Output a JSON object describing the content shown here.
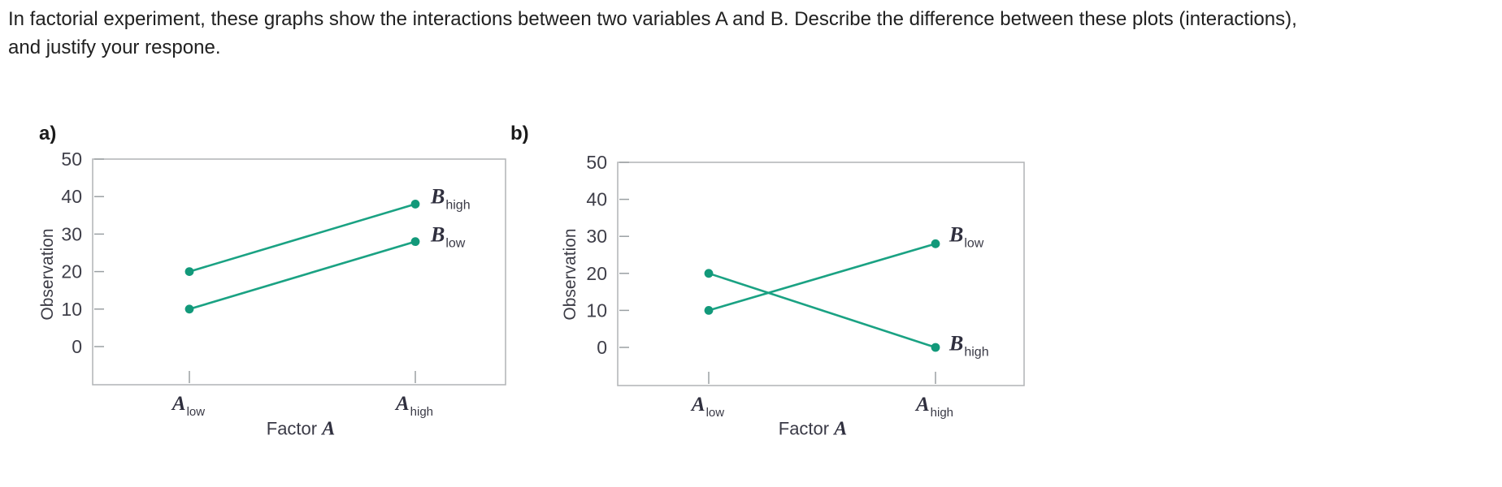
{
  "title": {
    "line1": "In factorial experiment, these graphs show the interactions between two variables A and B. Describe the difference between these plots (interactions),",
    "line2": "and justify your respone."
  },
  "colors": {
    "line": "#1aa283",
    "point": "#12997a",
    "axis_box": "#b1b3b5",
    "tick": "#9aa0a3",
    "tick_label": "#3f3f49"
  },
  "chart_data": [
    {
      "id": "a",
      "type": "line",
      "panel_label": "a)",
      "ylabel": "Observation",
      "xlabel": "Factor A",
      "xlabel_parts": {
        "word": "Factor",
        "var": "A"
      },
      "ylim": [
        0,
        50
      ],
      "yticks": [
        0,
        10,
        20,
        30,
        40,
        50
      ],
      "categories": [
        "A_low",
        "A_high"
      ],
      "category_labels": [
        {
          "base": "A",
          "sub": "low"
        },
        {
          "base": "A",
          "sub": "high"
        }
      ],
      "grid": false,
      "legend_position": "right-of-line-ends",
      "series": [
        {
          "name": "B_high",
          "label": {
            "base": "B",
            "sub": "high"
          },
          "values": [
            20,
            38
          ]
        },
        {
          "name": "B_low",
          "label": {
            "base": "B",
            "sub": "low"
          },
          "values": [
            10,
            28
          ]
        }
      ]
    },
    {
      "id": "b",
      "type": "line",
      "panel_label": "b)",
      "ylabel": "Observation",
      "xlabel": "Factor A",
      "xlabel_parts": {
        "word": "Factor",
        "var": "A"
      },
      "ylim": [
        0,
        50
      ],
      "yticks": [
        0,
        10,
        20,
        30,
        40,
        50
      ],
      "categories": [
        "A_low",
        "A_high"
      ],
      "category_labels": [
        {
          "base": "A",
          "sub": "low"
        },
        {
          "base": "A",
          "sub": "high"
        }
      ],
      "grid": false,
      "legend_position": "right-of-line-ends",
      "series": [
        {
          "name": "B_high",
          "label": {
            "base": "B",
            "sub": "high"
          },
          "values": [
            20,
            0
          ]
        },
        {
          "name": "B_low",
          "label": {
            "base": "B",
            "sub": "low"
          },
          "values": [
            10,
            28
          ]
        }
      ]
    }
  ]
}
